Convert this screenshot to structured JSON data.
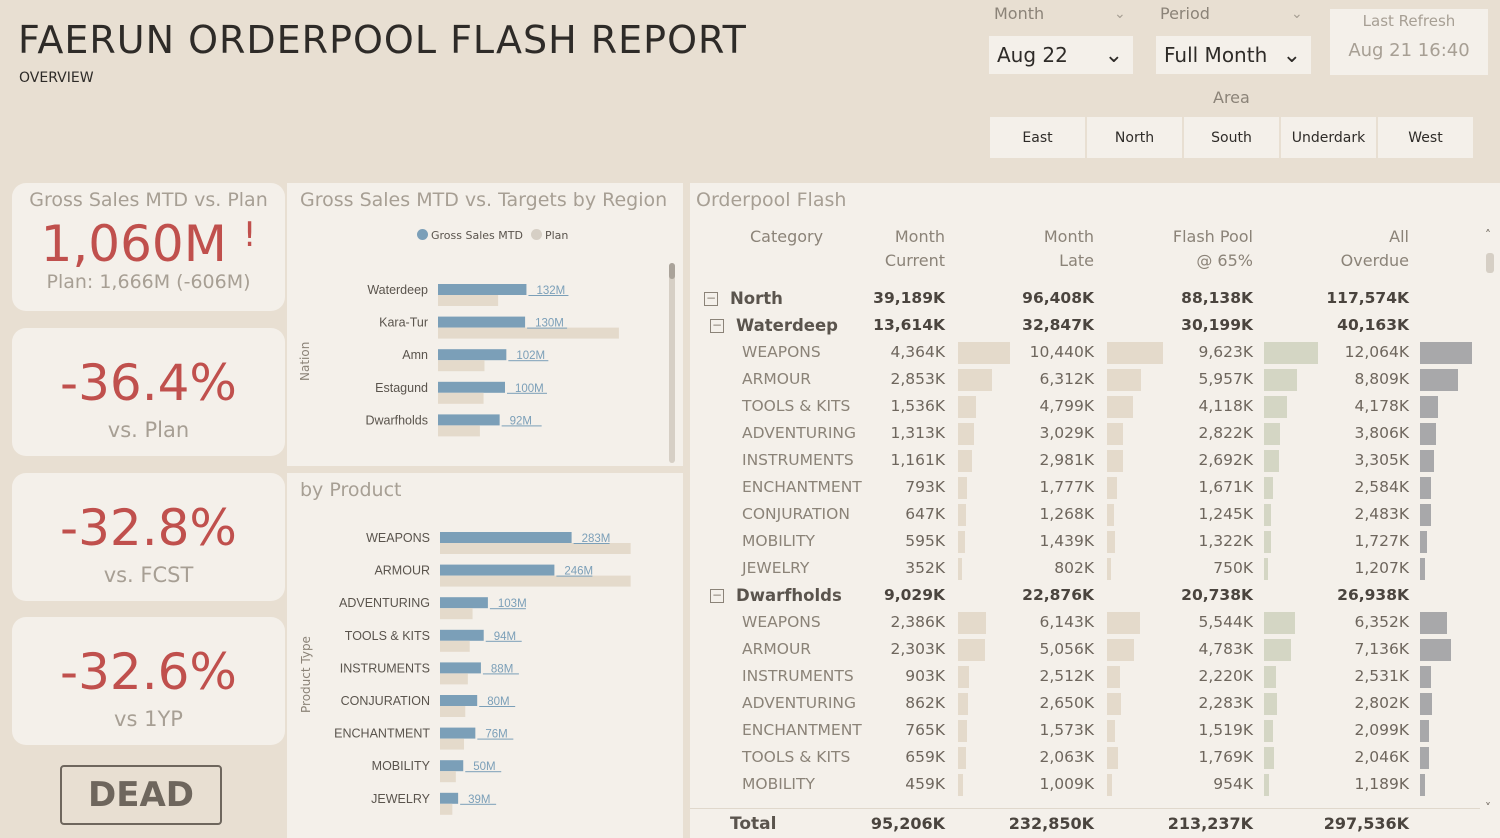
{
  "header": {
    "title": "FAERUN ORDERPOOL FLASH REPORT",
    "subtitle": "OVERVIEW"
  },
  "slicers": {
    "month": {
      "label": "Month",
      "value": "Aug 22"
    },
    "period": {
      "label": "Period",
      "value": "Full Month"
    },
    "refresh": {
      "label": "Last Refresh",
      "value": "Aug 21  16:40"
    },
    "area": {
      "label": "Area",
      "options": [
        "East",
        "North",
        "South",
        "Underdark",
        "West"
      ]
    }
  },
  "kpis": {
    "main": {
      "title": "Gross Sales MTD vs. Plan",
      "value": "1,060M",
      "alert": "!",
      "sub": "Plan: 1,666M (-606M)"
    },
    "cards": [
      {
        "value": "-36.4%",
        "label": "vs. Plan"
      },
      {
        "value": "-32.8%",
        "label": "vs. FCST"
      },
      {
        "value": "-32.6%",
        "label": "vs 1YP"
      }
    ]
  },
  "logo": {
    "text": "DEAD"
  },
  "colors": {
    "actual": "#7b9fb8",
    "plan": "#e4dacb",
    "alert": "#c0504d"
  },
  "chart_data": [
    {
      "type": "bar",
      "title": "Gross Sales MTD vs. Targets by Region",
      "ylabel": "Nation",
      "legend": [
        "Gross Sales MTD",
        "Plan"
      ],
      "categories": [
        "Waterdeep",
        "Kara-Tur",
        "Amn",
        "Estagund",
        "Dwarfholds"
      ],
      "series": [
        {
          "name": "Gross Sales MTD",
          "values": [
            132,
            130,
            102,
            100,
            92
          ],
          "labels": [
            "132M",
            "130M",
            "102M",
            "100M",
            "92M"
          ]
        },
        {
          "name": "Plan",
          "values": [
            0,
            270,
            0,
            0,
            0
          ]
        }
      ]
    },
    {
      "type": "bar",
      "title": "by Product",
      "ylabel": "Product Type",
      "categories": [
        "WEAPONS",
        "ARMOUR",
        "ADVENTURING",
        "TOOLS & KITS",
        "INSTRUMENTS",
        "CONJURATION",
        "ENCHANTMENT",
        "MOBILITY",
        "JEWELRY"
      ],
      "series": [
        {
          "name": "Gross Sales MTD",
          "values": [
            283,
            246,
            103,
            94,
            88,
            80,
            76,
            50,
            39
          ],
          "labels": [
            "283M",
            "246M",
            "103M",
            "94M",
            "88M",
            "80M",
            "76M",
            "50M",
            "39M"
          ]
        },
        {
          "name": "Plan",
          "values": [
            410,
            410,
            0,
            0,
            0,
            0,
            0,
            0,
            0
          ]
        }
      ]
    }
  ],
  "flash": {
    "title": "Orderpool Flash",
    "headers": [
      {
        "line1": "Category",
        "line2": ""
      },
      {
        "line1": "Month",
        "line2": "Current"
      },
      {
        "line1": "Month",
        "line2": "Late"
      },
      {
        "line1": "Flash Pool",
        "line2": "@ 65%"
      },
      {
        "line1": "All",
        "line2": "Overdue"
      }
    ],
    "rows": [
      {
        "level": 0,
        "toggle": "−",
        "cat": "North",
        "v": [
          "39,189K",
          "96,408K",
          "88,138K",
          "117,574K"
        ],
        "n": [
          0,
          0,
          0,
          0
        ]
      },
      {
        "level": 1,
        "toggle": "−",
        "cat": "Waterdeep",
        "v": [
          "13,614K",
          "32,847K",
          "30,199K",
          "40,163K"
        ],
        "n": [
          0,
          0,
          0,
          0
        ]
      },
      {
        "level": 2,
        "cat": "WEAPONS",
        "v": [
          "4,364K",
          "10,440K",
          "9,623K",
          "12,064K"
        ],
        "n": [
          4364,
          10440,
          9623,
          12064
        ]
      },
      {
        "level": 2,
        "cat": "ARMOUR",
        "v": [
          "2,853K",
          "6,312K",
          "5,957K",
          "8,809K"
        ],
        "n": [
          2853,
          6312,
          5957,
          8809
        ]
      },
      {
        "level": 2,
        "cat": "TOOLS & KITS",
        "v": [
          "1,536K",
          "4,799K",
          "4,118K",
          "4,178K"
        ],
        "n": [
          1536,
          4799,
          4118,
          4178
        ]
      },
      {
        "level": 2,
        "cat": "ADVENTURING",
        "v": [
          "1,313K",
          "3,029K",
          "2,822K",
          "3,806K"
        ],
        "n": [
          1313,
          3029,
          2822,
          3806
        ]
      },
      {
        "level": 2,
        "cat": "INSTRUMENTS",
        "v": [
          "1,161K",
          "2,981K",
          "2,692K",
          "3,305K"
        ],
        "n": [
          1161,
          2981,
          2692,
          3305
        ]
      },
      {
        "level": 2,
        "cat": "ENCHANTMENT",
        "v": [
          "793K",
          "1,777K",
          "1,671K",
          "2,584K"
        ],
        "n": [
          793,
          1777,
          1671,
          2584
        ]
      },
      {
        "level": 2,
        "cat": "CONJURATION",
        "v": [
          "647K",
          "1,268K",
          "1,245K",
          "2,483K"
        ],
        "n": [
          647,
          1268,
          1245,
          2483
        ]
      },
      {
        "level": 2,
        "cat": "MOBILITY",
        "v": [
          "595K",
          "1,439K",
          "1,322K",
          "1,727K"
        ],
        "n": [
          595,
          1439,
          1322,
          1727
        ]
      },
      {
        "level": 2,
        "cat": "JEWELRY",
        "v": [
          "352K",
          "802K",
          "750K",
          "1,207K"
        ],
        "n": [
          352,
          802,
          750,
          1207
        ]
      },
      {
        "level": 1,
        "toggle": "−",
        "cat": "Dwarfholds",
        "v": [
          "9,029K",
          "22,876K",
          "20,738K",
          "26,938K"
        ],
        "n": [
          0,
          0,
          0,
          0
        ]
      },
      {
        "level": 2,
        "cat": "WEAPONS",
        "v": [
          "2,386K",
          "6,143K",
          "5,544K",
          "6,352K"
        ],
        "n": [
          2386,
          6143,
          5544,
          6352
        ]
      },
      {
        "level": 2,
        "cat": "ARMOUR",
        "v": [
          "2,303K",
          "5,056K",
          "4,783K",
          "7,136K"
        ],
        "n": [
          2303,
          5056,
          4783,
          7136
        ]
      },
      {
        "level": 2,
        "cat": "INSTRUMENTS",
        "v": [
          "903K",
          "2,512K",
          "2,220K",
          "2,531K"
        ],
        "n": [
          903,
          2512,
          2220,
          2531
        ]
      },
      {
        "level": 2,
        "cat": "ADVENTURING",
        "v": [
          "862K",
          "2,650K",
          "2,283K",
          "2,802K"
        ],
        "n": [
          862,
          2650,
          2283,
          2802
        ]
      },
      {
        "level": 2,
        "cat": "ENCHANTMENT",
        "v": [
          "765K",
          "1,573K",
          "1,519K",
          "2,099K"
        ],
        "n": [
          765,
          1573,
          1519,
          2099
        ]
      },
      {
        "level": 2,
        "cat": "TOOLS & KITS",
        "v": [
          "659K",
          "2,063K",
          "1,769K",
          "2,046K"
        ],
        "n": [
          659,
          2063,
          1769,
          2046
        ]
      },
      {
        "level": 2,
        "cat": "MOBILITY",
        "v": [
          "459K",
          "1,009K",
          "954K",
          "1,189K"
        ],
        "n": [
          459,
          1009,
          954,
          1189
        ]
      }
    ],
    "total": {
      "label": "Total",
      "v": [
        "95,206K",
        "232,850K",
        "213,237K",
        "297,536K"
      ]
    },
    "scroll": {
      "up": "˄",
      "down": "˅"
    }
  }
}
